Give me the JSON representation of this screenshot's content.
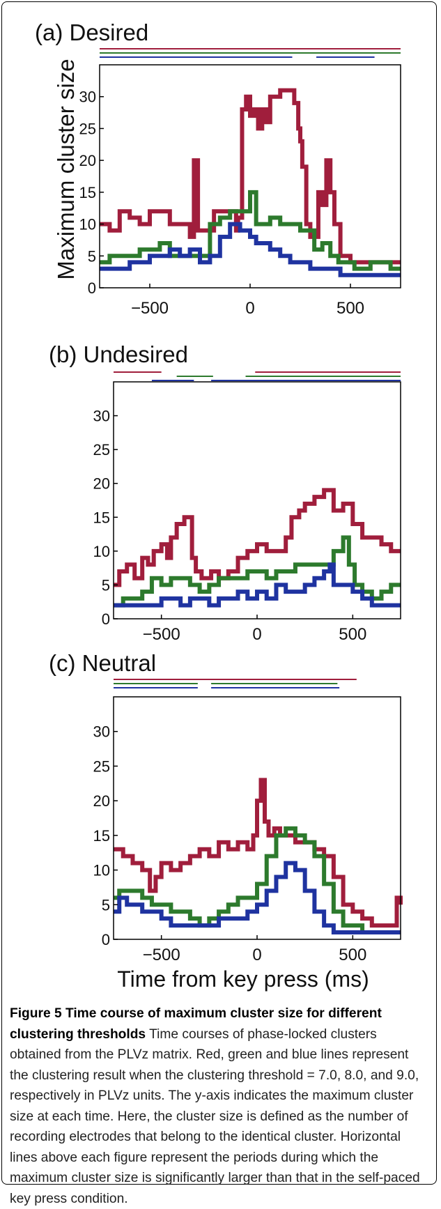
{
  "colors": {
    "red": "#a01e3c",
    "green": "#2d7a2d",
    "blue": "#1f33a0",
    "axis": "#000000"
  },
  "chart_data": [
    {
      "type": "line",
      "title": "(a) Desired",
      "xlabel": "",
      "ylabel": "Maximum cluster size",
      "xlim": [
        -750,
        750
      ],
      "ylim": [
        0,
        35
      ],
      "xticks": [
        -500,
        0,
        500
      ],
      "yticks": [
        0,
        5,
        10,
        15,
        20,
        25,
        30
      ],
      "series": [
        {
          "color": "red",
          "x": [
            -750,
            -700,
            -650,
            -600,
            -550,
            -500,
            -450,
            -400,
            -350,
            -300,
            -280,
            -260,
            -230,
            -180,
            -130,
            -100,
            -70,
            -60,
            -40,
            -20,
            0,
            20,
            40,
            60,
            80,
            100,
            120,
            150,
            180,
            220,
            240,
            250,
            260,
            280,
            300,
            340,
            360,
            380,
            400,
            420,
            450,
            480,
            500,
            550,
            600,
            650,
            700,
            750
          ],
          "y": [
            10,
            9,
            12,
            11,
            10,
            12,
            12,
            10,
            10,
            8,
            20,
            9,
            9,
            12,
            12,
            12,
            9,
            11,
            28,
            30,
            27,
            28,
            25,
            28,
            26,
            30,
            30,
            31,
            31,
            29,
            25,
            23,
            19,
            10,
            8,
            15,
            13,
            20,
            15,
            10,
            5,
            5,
            4,
            4,
            4,
            4,
            4,
            4
          ]
        },
        {
          "color": "green",
          "x": [
            -750,
            -700,
            -650,
            -600,
            -550,
            -500,
            -450,
            -400,
            -350,
            -300,
            -250,
            -200,
            -150,
            -100,
            -50,
            0,
            30,
            60,
            100,
            150,
            200,
            250,
            280,
            320,
            360,
            400,
            440,
            480,
            520,
            560,
            600,
            650,
            700,
            750
          ],
          "y": [
            4,
            5,
            5,
            5,
            6,
            6,
            7,
            5,
            5,
            5,
            5,
            10,
            11,
            12,
            12,
            15,
            10,
            10,
            11,
            10,
            10,
            9,
            9,
            6,
            7,
            5,
            4,
            4,
            3,
            3,
            4,
            4,
            3,
            3
          ]
        },
        {
          "color": "blue",
          "x": [
            -750,
            -700,
            -650,
            -600,
            -550,
            -500,
            -450,
            -400,
            -350,
            -300,
            -250,
            -200,
            -150,
            -100,
            -80,
            -50,
            0,
            30,
            60,
            100,
            150,
            200,
            250,
            300,
            350,
            400,
            450,
            500,
            550,
            600,
            650,
            700,
            750
          ],
          "y": [
            3,
            3,
            3,
            4,
            4,
            5,
            5,
            6,
            5,
            6,
            4,
            5,
            8,
            10,
            10,
            9,
            8,
            7,
            7,
            6,
            5,
            4,
            4,
            3,
            3,
            3,
            2,
            2,
            2,
            2,
            2,
            2,
            2
          ]
        }
      ],
      "sig_lines": [
        {
          "color": "red",
          "segments": [
            [
              -750,
              750
            ]
          ]
        },
        {
          "color": "green",
          "segments": [
            [
              -750,
              750
            ]
          ]
        },
        {
          "color": "blue",
          "segments": [
            [
              -750,
              210
            ],
            [
              330,
              620
            ]
          ]
        }
      ]
    },
    {
      "type": "line",
      "title": "(b) Undesired",
      "xlabel": "",
      "ylabel": "",
      "xlim": [
        -750,
        750
      ],
      "ylim": [
        0,
        35
      ],
      "xticks": [
        -500,
        0,
        500
      ],
      "yticks": [
        0,
        5,
        10,
        15,
        20,
        25,
        30
      ],
      "series": [
        {
          "color": "red",
          "x": [
            -750,
            -720,
            -680,
            -640,
            -600,
            -570,
            -540,
            -500,
            -470,
            -450,
            -420,
            -380,
            -340,
            -320,
            -290,
            -270,
            -240,
            -200,
            -150,
            -100,
            -50,
            0,
            50,
            100,
            150,
            180,
            220,
            250,
            300,
            350,
            400,
            450,
            500,
            550,
            600,
            650,
            700,
            750
          ],
          "y": [
            5,
            7,
            8,
            6,
            9,
            8,
            10,
            11,
            9,
            12,
            14,
            15,
            9,
            7,
            6,
            6,
            7,
            6,
            7,
            9,
            10,
            11,
            10,
            10,
            12,
            15,
            16,
            17,
            18,
            19,
            16,
            17,
            14,
            12,
            12,
            11,
            10,
            10
          ]
        },
        {
          "color": "green",
          "x": [
            -750,
            -700,
            -650,
            -600,
            -550,
            -500,
            -450,
            -400,
            -350,
            -300,
            -250,
            -200,
            -150,
            -100,
            -50,
            0,
            50,
            100,
            150,
            200,
            250,
            300,
            350,
            400,
            450,
            480,
            510,
            550,
            600,
            650,
            700,
            750
          ],
          "y": [
            2,
            3,
            3,
            4,
            6,
            5,
            6,
            6,
            5,
            4,
            5,
            6,
            6,
            6,
            7,
            7,
            6,
            7,
            7,
            8,
            8,
            8,
            8,
            10,
            12,
            8,
            5,
            4,
            3,
            4,
            5,
            5
          ]
        },
        {
          "color": "blue",
          "x": [
            -750,
            -700,
            -650,
            -600,
            -550,
            -500,
            -450,
            -400,
            -350,
            -300,
            -250,
            -200,
            -150,
            -100,
            -50,
            0,
            50,
            100,
            150,
            200,
            250,
            300,
            350,
            380,
            400,
            450,
            500,
            550,
            600,
            650,
            700,
            750
          ],
          "y": [
            2,
            2,
            2,
            2,
            2,
            3,
            3,
            2,
            3,
            3,
            2,
            3,
            3,
            4,
            3,
            4,
            3,
            5,
            4,
            4,
            5,
            6,
            7,
            8,
            5,
            5,
            4,
            3,
            2,
            2,
            2,
            2
          ]
        }
      ],
      "sig_lines": [
        {
          "color": "red",
          "segments": [
            [
              -750,
              -500
            ],
            [
              -10,
              750
            ]
          ]
        },
        {
          "color": "green",
          "segments": [
            [
              -420,
              -230
            ],
            [
              -60,
              750
            ]
          ]
        },
        {
          "color": "blue",
          "segments": [
            [
              -550,
              -330
            ],
            [
              -240,
              750
            ]
          ]
        }
      ]
    },
    {
      "type": "line",
      "title": "(c) Neutral",
      "xlabel": "Time from key press (ms)",
      "ylabel": "",
      "xlim": [
        -750,
        750
      ],
      "ylim": [
        0,
        35
      ],
      "xticks": [
        -500,
        0,
        500
      ],
      "yticks": [
        0,
        5,
        10,
        15,
        20,
        25,
        30
      ],
      "series": [
        {
          "color": "red",
          "x": [
            -750,
            -700,
            -650,
            -600,
            -560,
            -530,
            -500,
            -450,
            -400,
            -350,
            -300,
            -250,
            -200,
            -150,
            -100,
            -50,
            -20,
            0,
            20,
            40,
            60,
            90,
            120,
            150,
            200,
            250,
            300,
            350,
            400,
            450,
            500,
            550,
            600,
            650,
            700,
            730,
            750
          ],
          "y": [
            13,
            12,
            11,
            10,
            7,
            9,
            11,
            10,
            11,
            12,
            13,
            12,
            14,
            13,
            14,
            13,
            15,
            20,
            23,
            17,
            15,
            16,
            15,
            15,
            14,
            14,
            13,
            12,
            9,
            5,
            4,
            3,
            2,
            2,
            2,
            6,
            5
          ]
        },
        {
          "color": "green",
          "x": [
            -750,
            -720,
            -680,
            -600,
            -550,
            -500,
            -450,
            -400,
            -350,
            -300,
            -250,
            -200,
            -150,
            -100,
            -50,
            0,
            50,
            100,
            150,
            200,
            250,
            300,
            350,
            400,
            450,
            500,
            550,
            600,
            650,
            700,
            750
          ],
          "y": [
            6,
            7,
            7,
            6,
            5,
            5,
            4,
            4,
            3,
            2,
            3,
            4,
            5,
            6,
            6,
            8,
            12,
            15,
            16,
            15,
            14,
            12,
            8,
            4,
            2,
            2,
            1,
            1,
            1,
            1,
            1
          ]
        },
        {
          "color": "blue",
          "x": [
            -750,
            -720,
            -680,
            -600,
            -550,
            -500,
            -450,
            -400,
            -350,
            -300,
            -250,
            -200,
            -150,
            -100,
            -50,
            0,
            50,
            100,
            150,
            200,
            250,
            300,
            350,
            400,
            450,
            500,
            550,
            600,
            650,
            700,
            750
          ],
          "y": [
            4,
            6,
            5,
            4,
            4,
            3,
            2,
            2,
            2,
            2,
            2,
            3,
            3,
            3,
            4,
            5,
            7,
            9,
            11,
            10,
            7,
            4,
            2,
            1,
            1,
            1,
            1,
            1,
            1,
            1,
            1
          ]
        }
      ],
      "sig_lines": [
        {
          "color": "red",
          "segments": [
            [
              -750,
              520
            ]
          ]
        },
        {
          "color": "green",
          "segments": [
            [
              -750,
              -310
            ],
            [
              -240,
              420
            ]
          ]
        },
        {
          "color": "blue",
          "segments": [
            [
              -750,
              -310
            ],
            [
              -240,
              430
            ]
          ]
        }
      ]
    }
  ],
  "caption": {
    "title": "Figure 5 Time course of maximum cluster size for different clustering thresholds",
    "body": "Time courses of phase-locked clusters obtained from the PLVz matrix. Red, green and blue lines represent the clustering result when the clustering threshold = 7.0, 8.0, and 9.0, respectively in PLVz units. The y-axis indicates the maximum cluster size at each time. Here, the cluster size is defined as the number of recording electrodes that belong to the identical cluster. Horizontal lines above each figure represent the periods during which the maximum cluster size is significantly larger than that in the self-paced key press condition."
  }
}
